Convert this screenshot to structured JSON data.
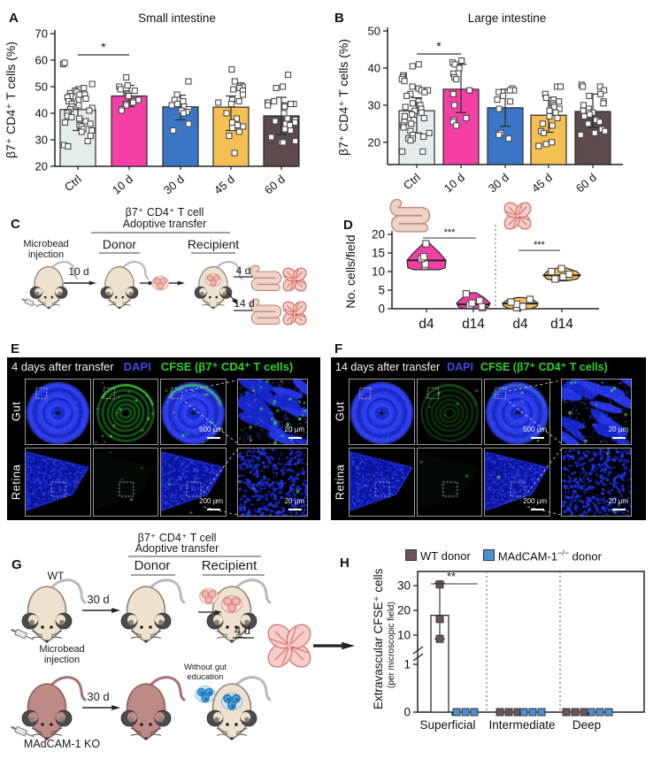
{
  "panelA": {
    "letter": "A"
  },
  "panelB": {
    "letter": "B"
  },
  "panelC": {
    "letter": "C",
    "title1": "β7⁺ CD4⁺ T cell",
    "title2": "Adoptive transfer",
    "donor": "Donor",
    "recipient": "Recipient",
    "microbead": "Microbead injection",
    "d10": "10 d",
    "d4": "4 d",
    "d14": "14 d"
  },
  "panelD": {
    "letter": "D"
  },
  "panelE": {
    "letter": "E",
    "header": "4 days after transfer",
    "dapi": "DAPI",
    "cfse": "CFSE (β7⁺ CD4⁺ T cells)",
    "rows": [
      "Gut",
      "Retina"
    ],
    "scalebars": {
      "gut_merge": "500 µm",
      "gut_zoom": "20 µm",
      "retina_merge": "200 µm",
      "retina_zoom": "20 µm"
    },
    "green": {
      "gut": 1.0,
      "retina": 0.5
    }
  },
  "panelF": {
    "letter": "F",
    "header": "14 days after transfer",
    "dapi": "DAPI",
    "cfse": "CFSE (β7⁺ CD4⁺ T cells)",
    "rows": [
      "Gut",
      "Retina"
    ],
    "scalebars": {
      "gut_merge": "500 µm",
      "gut_zoom": "20 µm",
      "retina_merge": "200 µm",
      "retina_zoom": "20 µm"
    },
    "green": {
      "gut": 0.3,
      "retina": 0.25
    }
  },
  "panelG": {
    "letter": "G",
    "title1": "β7⁺ CD4⁺ T cell",
    "title2": "Adoptive transfer",
    "donor": "Donor",
    "recipient": "Recipient",
    "wt": "WT",
    "ko": "MAdCAM-1 KO",
    "microbead": "Microbead injection",
    "without": "Without gut education",
    "d30a": "30 d",
    "d30b": "30 d",
    "d4": "4 d"
  },
  "panelH": {
    "letter": "H",
    "legend_wt": "WT donor",
    "legend_ko_base": "MAdCAM-1",
    "legend_ko_sup": "−/−",
    "legend_ko_rest": " donor",
    "ylabel1": "Extravascular CFSE⁺ cells",
    "ylabel2": "(per microscopic field)"
  },
  "colors": {
    "bar_ctrl": "#e4eded",
    "bar_pink": "#f33fa6",
    "bar_blue": "#3a76c5",
    "bar_orange": "#f4c054",
    "bar_brown": "#5d4a4a",
    "wt_donor": "#6b5555",
    "ko_donor": "#4a90d9",
    "dapi_text": "#4646e8",
    "cfse_text": "#2fd02f",
    "mouse_wt": "#eee2cf",
    "mouse_ko": "#bd8a85"
  },
  "chart_data": [
    {
      "id": "A",
      "type": "bar",
      "title": "Small intestine",
      "ylabel": "β7⁺ CD4⁺ T cells (%)",
      "ylim": [
        20,
        70
      ],
      "yticks": [
        20,
        30,
        40,
        50,
        60,
        70
      ],
      "categories": [
        "Ctrl",
        "10 d",
        "30 d",
        "45 d",
        "60 d"
      ],
      "bar_colors": [
        "#e4eded",
        "#f33fa6",
        "#3a76c5",
        "#f4c054",
        "#5d4a4a"
      ],
      "means": [
        41.4,
        46.5,
        42.4,
        42.3,
        39.0
      ],
      "whisker_low": [
        33.5,
        42.5,
        37.5,
        33.5,
        32.0
      ],
      "whisker_high": [
        49.0,
        50.5,
        46.8,
        46.5,
        46.0
      ],
      "points": [
        [
          58.5,
          59,
          51,
          49.5,
          49,
          48.5,
          48,
          47.5,
          47,
          47,
          46.5,
          46,
          45.5,
          45,
          44.5,
          44,
          43.5,
          43,
          42.5,
          42,
          41.5,
          41,
          40.5,
          40,
          39,
          38.5,
          38,
          37,
          36.5,
          36,
          35.5,
          35,
          34,
          33.5,
          33,
          31.5,
          29.5,
          28,
          27.5
        ],
        [
          53.5,
          50.5,
          50,
          49,
          48.5,
          47.5,
          47,
          46.5,
          45,
          44.5,
          44,
          43.5,
          43,
          41.5,
          41
        ],
        [
          52,
          47,
          45,
          44.5,
          43.5,
          43,
          42.5,
          41.5,
          41,
          40.5,
          40,
          36,
          33.5
        ],
        [
          56.5,
          52,
          50.5,
          50,
          49.5,
          49,
          48.5,
          47,
          45,
          44.5,
          44,
          43.5,
          40,
          38,
          36.5,
          35.5,
          35,
          34.5,
          33,
          31.5,
          25
        ],
        [
          54.5,
          50,
          49.5,
          44.5,
          44,
          44,
          43.5,
          43.5,
          43,
          43,
          42.5,
          40,
          38,
          37.5,
          37,
          36.5,
          36,
          35.5,
          34,
          33.5,
          31,
          29.5,
          29,
          29
        ]
      ],
      "significance": {
        "from": 0,
        "to": 1,
        "label": "*"
      }
    },
    {
      "id": "B",
      "type": "bar",
      "title": "Large intestine",
      "ylabel": "β7⁺ CD4⁺ T cells (%)",
      "ylim": [
        14,
        50
      ],
      "yticks": [
        20,
        30,
        40,
        50
      ],
      "categories": [
        "Ctrl",
        "10 d",
        "30 d",
        "45 d",
        "60 d"
      ],
      "bar_colors": [
        "#e4eded",
        "#f33fa6",
        "#3a76c5",
        "#f4c054",
        "#5d4a4a"
      ],
      "means": [
        28.5,
        34.3,
        29.3,
        27.3,
        28.3
      ],
      "whisker_low": [
        22.5,
        28.0,
        24.3,
        22.7,
        24.0
      ],
      "whisker_high": [
        32.0,
        41.0,
        34.3,
        32.0,
        33.0
      ],
      "points": [
        [
          41,
          40.5,
          38,
          38,
          37.5,
          37,
          36.5,
          35,
          34.5,
          34,
          34,
          33.5,
          33,
          32.5,
          31,
          30.5,
          30,
          30,
          29.5,
          29,
          28.5,
          28,
          27.5,
          27,
          26.5,
          26,
          25.5,
          25,
          24.5,
          24,
          23,
          22.5,
          22,
          21.5,
          21,
          21,
          20.5,
          17.5,
          17.5
        ],
        [
          42,
          41.5,
          41,
          40,
          38.5,
          37.5,
          37,
          34,
          33,
          30,
          26.5,
          26,
          25.5,
          24.5
        ],
        [
          34.5,
          34,
          34,
          33.5,
          32.5,
          31.5,
          31,
          29,
          22.5,
          22,
          21
        ],
        [
          35,
          35,
          33,
          32,
          31.5,
          31,
          30.5,
          30,
          29.5,
          29,
          28.5,
          28,
          27,
          26.5,
          25,
          24.5,
          23,
          22.5,
          20,
          19.5,
          19
        ],
        [
          35.5,
          35,
          35,
          34,
          33,
          32.5,
          31,
          30.5,
          30,
          29,
          28.5,
          28,
          28,
          27.5,
          27,
          26,
          25.5,
          25,
          23.5,
          23,
          22.5,
          22
        ]
      ],
      "significance": {
        "from": 0,
        "to": 1,
        "label": "*"
      }
    },
    {
      "id": "D",
      "type": "violin",
      "ylabel": "No. cells/field",
      "ylim": [
        0,
        20
      ],
      "yticks": [
        0,
        5,
        10,
        15,
        20
      ],
      "categories": [
        "d4",
        "d14",
        "d4",
        "d14"
      ],
      "groups": [
        {
          "tissue": "gut",
          "color": "#f33fa6",
          "median": 13,
          "points": [
            11.5,
            12,
            13.5,
            14,
            17.5
          ],
          "outline": [
            [
              10.5,
              14
            ],
            [
              11,
              21
            ],
            [
              13,
              22
            ],
            [
              15,
              15
            ],
            [
              17,
              6
            ],
            [
              18,
              2
            ]
          ]
        },
        {
          "tissue": "gut",
          "color": "#f33fa6",
          "median": 1.2,
          "points": [
            0.3,
            0.6,
            1,
            1.5,
            2.2,
            4
          ],
          "outline": [
            [
              0,
              10
            ],
            [
              0.5,
              17
            ],
            [
              1.5,
              19
            ],
            [
              3,
              12
            ],
            [
              4.3,
              3
            ]
          ]
        },
        {
          "tissue": "retina",
          "color": "#f4c054",
          "median": 1.4,
          "points": [
            0.3,
            0.6,
            1.2,
            1.8,
            2.5
          ],
          "outline": [
            [
              0,
              12
            ],
            [
              0.7,
              19
            ],
            [
              1.5,
              20
            ],
            [
              2.3,
              15
            ],
            [
              3,
              4
            ]
          ]
        },
        {
          "tissue": "retina",
          "color": "#f4c054",
          "median": 9,
          "points": [
            8,
            8.6,
            9.3,
            10,
            10.8
          ],
          "outline": [
            [
              7.5,
              6
            ],
            [
              8,
              17
            ],
            [
              9,
              21
            ],
            [
              10,
              17
            ],
            [
              11,
              5
            ]
          ]
        }
      ],
      "significance": [
        {
          "from": 0,
          "to": 1,
          "label": "***"
        },
        {
          "from": 2,
          "to": 3,
          "label": "***"
        }
      ]
    },
    {
      "id": "H",
      "type": "bar-broken",
      "ylabel": "Extravascular CFSE⁺ cells",
      "ylabel2": "(per microscopic field)",
      "yticks_upper": [
        10,
        20,
        30
      ],
      "yticks_lower": [
        0,
        1
      ],
      "categories": [
        "Superficial",
        "Intermediate",
        "Deep"
      ],
      "series": [
        {
          "name": "WT donor",
          "color": "#6b5555",
          "values": [
            18,
            0,
            0
          ],
          "points": [
            [
              30.5,
              16.5,
              8.5
            ],
            [
              0,
              0,
              0
            ],
            [
              0,
              0,
              0
            ]
          ],
          "whisker_superficial": [
            8.5,
            31
          ]
        },
        {
          "name": "MAdCAM-1−/− donor",
          "color": "#4a90d9",
          "values": [
            0,
            0,
            0
          ],
          "points": [
            [
              0,
              0,
              0
            ],
            [
              0,
              0,
              0
            ],
            [
              0,
              0,
              0
            ]
          ]
        }
      ],
      "significance": {
        "label": "**",
        "where": "Superficial"
      }
    }
  ]
}
